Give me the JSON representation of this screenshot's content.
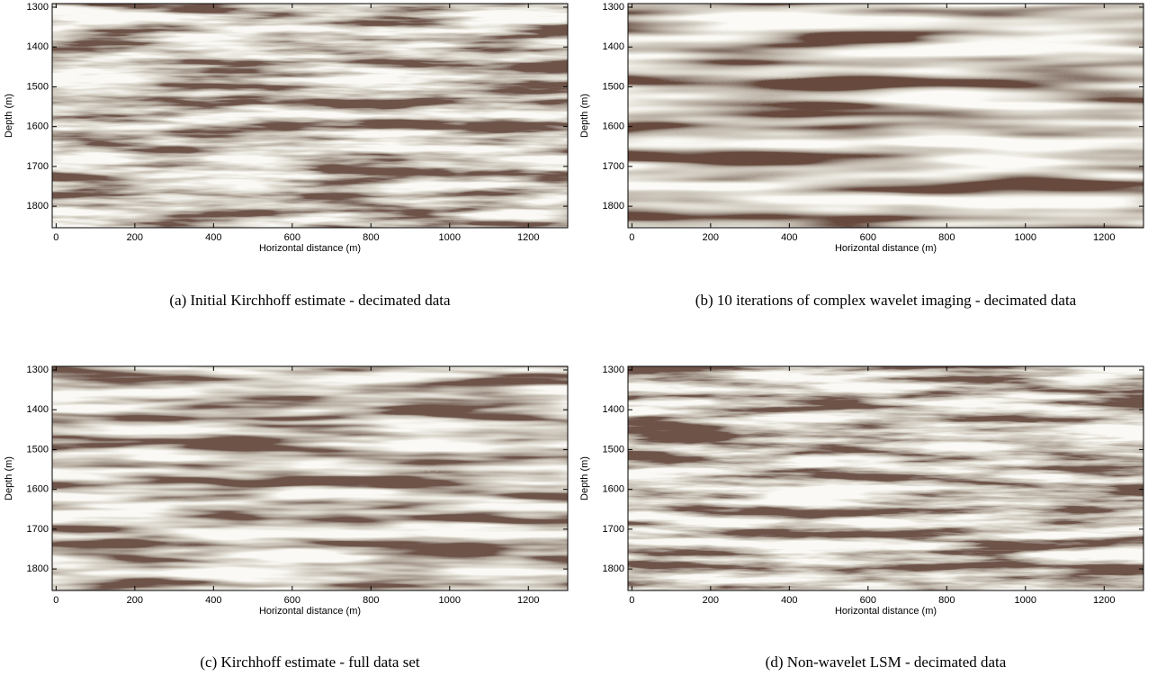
{
  "chart_data": [
    {
      "type": "image",
      "caption": "(a) Initial Kirchhoff estimate - decimated data",
      "xlabel": "Horizontal distance (m)",
      "ylabel": "Depth (m)",
      "xlim": [
        -10,
        1300
      ],
      "ylim": [
        1291,
        1854
      ],
      "xticks": [
        0,
        200,
        400,
        600,
        800,
        1000,
        1200
      ],
      "yticks": [
        1300,
        1400,
        1500,
        1600,
        1700,
        1800
      ]
    },
    {
      "type": "image",
      "caption": "(b) 10 iterations of complex wavelet imaging - decimated data",
      "xlabel": "Horizontal distance (m)",
      "ylabel": "Depth (m)",
      "xlim": [
        -10,
        1300
      ],
      "ylim": [
        1291,
        1854
      ],
      "xticks": [
        0,
        200,
        400,
        600,
        800,
        1000,
        1200
      ],
      "yticks": [
        1300,
        1400,
        1500,
        1600,
        1700,
        1800
      ]
    },
    {
      "type": "image",
      "caption": "(c) Kirchhoff estimate - full data set",
      "xlabel": "Horizontal distance (m)",
      "ylabel": "Depth (m)",
      "xlim": [
        -10,
        1300
      ],
      "ylim": [
        1291,
        1854
      ],
      "xticks": [
        0,
        200,
        400,
        600,
        800,
        1000,
        1200
      ],
      "yticks": [
        1300,
        1400,
        1500,
        1600,
        1700,
        1800
      ]
    },
    {
      "type": "image",
      "caption": "(d) Non-wavelet LSM - decimated data",
      "xlabel": "Horizontal distance (m)",
      "ylabel": "Depth (m)",
      "xlim": [
        -10,
        1300
      ],
      "ylim": [
        1291,
        1854
      ],
      "xticks": [
        0,
        200,
        400,
        600,
        800,
        1000,
        1200
      ],
      "yticks": [
        1300,
        1400,
        1500,
        1600,
        1700,
        1800
      ]
    }
  ]
}
